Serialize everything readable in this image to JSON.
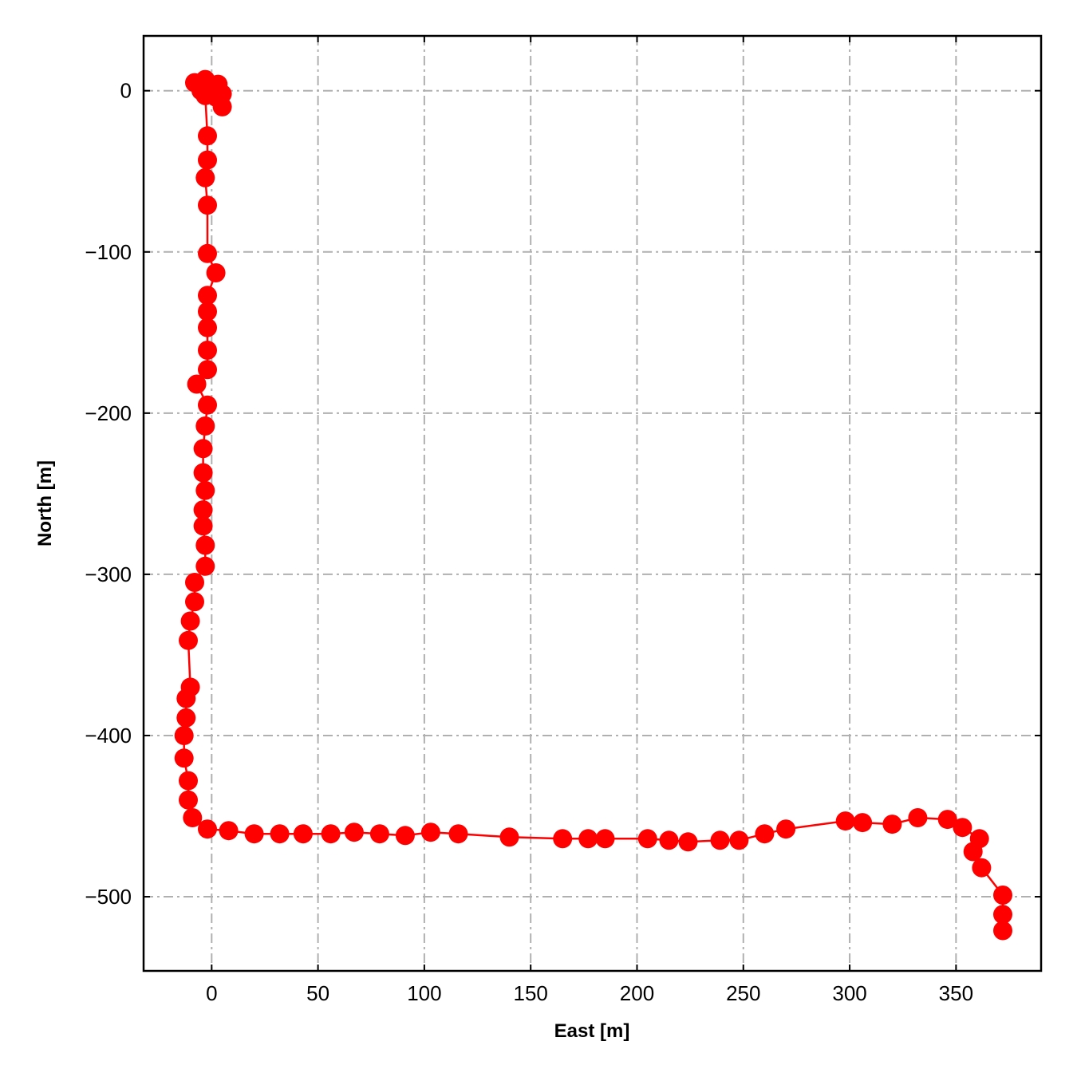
{
  "chart_data": {
    "type": "line",
    "xlabel": "East [m]",
    "ylabel": "North [m]",
    "xlim": [
      -32,
      390
    ],
    "ylim": [
      -546,
      34
    ],
    "xticks": [
      0,
      50,
      100,
      150,
      200,
      250,
      300,
      350
    ],
    "yticks": [
      0,
      -100,
      -200,
      -300,
      -400,
      -500
    ],
    "grid": true,
    "series": [
      {
        "color": "#ff0000",
        "marker": "circle",
        "points": [
          [
            -8,
            5
          ],
          [
            -5,
            0
          ],
          [
            -3,
            7
          ],
          [
            0,
            2
          ],
          [
            3,
            4
          ],
          [
            5,
            -2
          ],
          [
            5,
            -10
          ],
          [
            2,
            -4
          ],
          [
            -2,
            2
          ],
          [
            -3,
            -3
          ],
          [
            -2,
            -28
          ],
          [
            -2,
            -43
          ],
          [
            -3,
            -54
          ],
          [
            -2,
            -71
          ],
          [
            -2,
            -101
          ],
          [
            2,
            -113
          ],
          [
            -2,
            -127
          ],
          [
            -2,
            -137
          ],
          [
            -2,
            -147
          ],
          [
            -2,
            -161
          ],
          [
            -2,
            -173
          ],
          [
            -7,
            -182
          ],
          [
            -2,
            -195
          ],
          [
            -3,
            -208
          ],
          [
            -4,
            -222
          ],
          [
            -4,
            -237
          ],
          [
            -3,
            -248
          ],
          [
            -4,
            -260
          ],
          [
            -4,
            -270
          ],
          [
            -3,
            -282
          ],
          [
            -3,
            -295
          ],
          [
            -8,
            -305
          ],
          [
            -8,
            -317
          ],
          [
            -10,
            -329
          ],
          [
            -11,
            -341
          ],
          [
            -10,
            -370
          ],
          [
            -12,
            -377
          ],
          [
            -12,
            -389
          ],
          [
            -13,
            -400
          ],
          [
            -13,
            -414
          ],
          [
            -11,
            -428
          ],
          [
            -11,
            -440
          ],
          [
            -9,
            -451
          ],
          [
            -2,
            -458
          ],
          [
            8,
            -459
          ],
          [
            20,
            -461
          ],
          [
            32,
            -461
          ],
          [
            43,
            -461
          ],
          [
            56,
            -461
          ],
          [
            67,
            -460
          ],
          [
            79,
            -461
          ],
          [
            91,
            -462
          ],
          [
            103,
            -460
          ],
          [
            116,
            -461
          ],
          [
            140,
            -463
          ],
          [
            165,
            -464
          ],
          [
            177,
            -464
          ],
          [
            185,
            -464
          ],
          [
            205,
            -464
          ],
          [
            215,
            -465
          ],
          [
            224,
            -466
          ],
          [
            239,
            -465
          ],
          [
            248,
            -465
          ],
          [
            260,
            -461
          ],
          [
            270,
            -458
          ],
          [
            298,
            -453
          ],
          [
            306,
            -454
          ],
          [
            320,
            -455
          ],
          [
            332,
            -451
          ],
          [
            346,
            -452
          ],
          [
            353,
            -457
          ],
          [
            361,
            -464
          ],
          [
            358,
            -472
          ],
          [
            362,
            -482
          ],
          [
            372,
            -499
          ],
          [
            372,
            -511
          ],
          [
            372,
            -521
          ]
        ]
      }
    ]
  }
}
